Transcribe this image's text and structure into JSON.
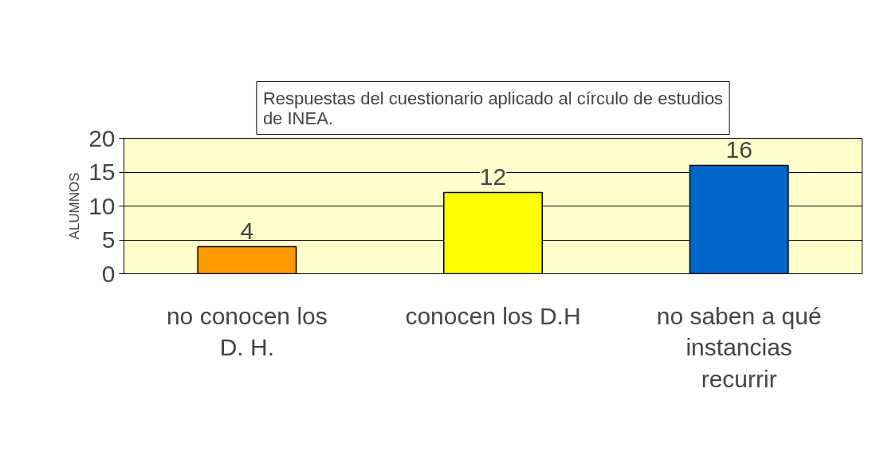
{
  "chart_data": {
    "type": "bar",
    "title": "Respuestas del cuestionario aplicado al círculo de estudios de INEA.",
    "ylabel": "ALUMNOS",
    "categories": [
      "no conocen los D. H.",
      "conocen los D.H",
      "no saben a qué instancias recurrir"
    ],
    "values": [
      4,
      12,
      16
    ],
    "colors": [
      "#ff9900",
      "#ffff00",
      "#0066cc"
    ],
    "ylim": [
      0,
      20
    ],
    "yticks": [
      0,
      5,
      10,
      15,
      20
    ],
    "grid": "y",
    "data_labels": true
  }
}
